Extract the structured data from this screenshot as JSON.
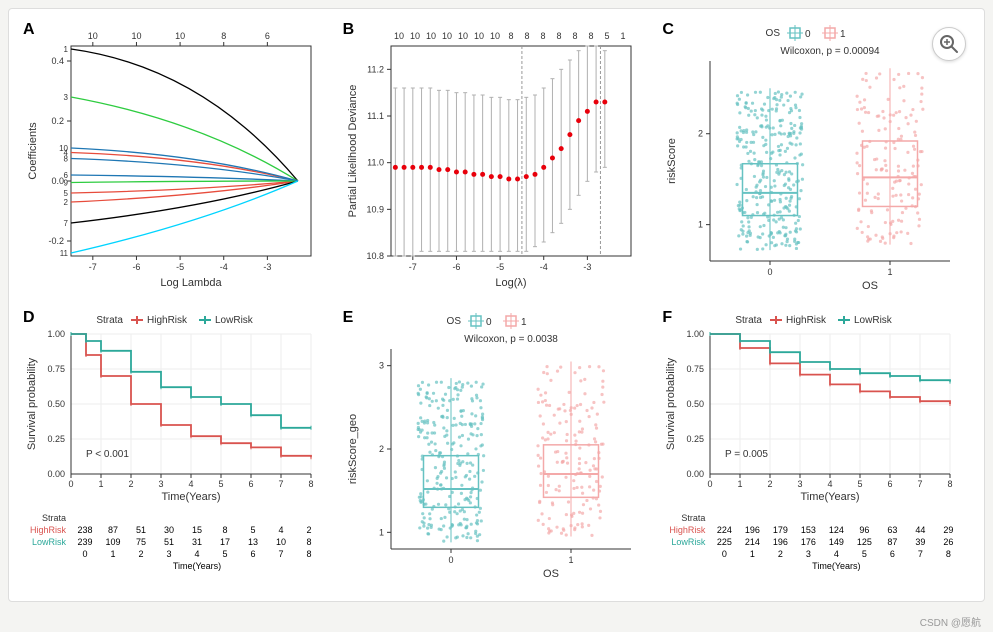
{
  "credit": "CSDN @愿航",
  "zoom_icon": "magnify-plus-icon",
  "palettes": {
    "teal": "#66c2c2",
    "pink": "#f4a9a9",
    "highrisk": "#d9534f",
    "lowrisk": "#2ca89a",
    "grid": "#e0e0e0",
    "border": "#333333",
    "bg": "#ffffff"
  },
  "panelA": {
    "label": "A",
    "type": "line",
    "xlabel": "Log Lambda",
    "ylabel": "Coefficients",
    "xlim": [
      -7.5,
      -2
    ],
    "ylim": [
      -0.25,
      0.45
    ],
    "xticks": [
      -7,
      -6,
      -5,
      -4,
      -3
    ],
    "yticks": [
      -0.2,
      0,
      0.2,
      0.4
    ],
    "top_axis_ticks": [
      10,
      10,
      10,
      8,
      6
    ],
    "line_colors": {
      "1": "#000000",
      "3": "#2ecc40",
      "4": "#e74c3c",
      "5": "#e74c3c",
      "2": "#e74c3c",
      "6": "#1f77b4",
      "7": "#000000",
      "8": "#1f77b4",
      "9": "#2ecc40",
      "10": "#1f77b4",
      "11": "#00d4ff"
    },
    "lines": {
      "1": {
        "y0": 0.44,
        "ymid": 0.38,
        "yend": 0.0,
        "label": "1"
      },
      "3": {
        "y0": 0.28,
        "ymid": 0.2,
        "yend": 0.0,
        "label": "3"
      },
      "10": {
        "y0": 0.11,
        "ymid": 0.09,
        "yend": 0.0,
        "label": "10"
      },
      "4": {
        "y0": 0.095,
        "ymid": 0.08,
        "yend": 0.0,
        "label": "4"
      },
      "8": {
        "y0": 0.075,
        "ymid": 0.06,
        "yend": 0.0,
        "label": "8"
      },
      "6": {
        "y0": 0.02,
        "ymid": 0.015,
        "yend": 0.0,
        "label": "6"
      },
      "9": {
        "y0": -0.005,
        "ymid": 0.0,
        "yend": 0.0,
        "label": "9"
      },
      "5": {
        "y0": -0.04,
        "ymid": -0.03,
        "yend": 0.0,
        "label": "5"
      },
      "2": {
        "y0": -0.07,
        "ymid": -0.05,
        "yend": 0.0,
        "label": "2"
      },
      "7": {
        "y0": -0.14,
        "ymid": -0.09,
        "yend": 0.0,
        "label": "7"
      },
      "11": {
        "y0": -0.24,
        "ymid": -0.14,
        "yend": 0.0,
        "label": "11"
      }
    }
  },
  "panelB": {
    "label": "B",
    "type": "cv-deviance",
    "xlabel": "Log(λ)",
    "ylabel": "Partial Likelihood Deviance",
    "xlim": [
      -7.5,
      -2
    ],
    "ylim": [
      10.8,
      11.25
    ],
    "xticks": [
      -7,
      -6,
      -5,
      -4,
      -3
    ],
    "yticks": [
      10.8,
      10.9,
      11.0,
      11.1,
      11.2
    ],
    "top_labels": [
      "10",
      "10",
      "10",
      "10",
      "10",
      "10",
      "10",
      "8",
      "8",
      "8",
      "8",
      "8",
      "8",
      "5",
      "1"
    ],
    "vlines": [
      -4.5,
      -2.7
    ],
    "point_color": "#e8000b",
    "errorbar_color": "#b0b0b0",
    "points": [
      {
        "x": -7.4,
        "y": 10.99,
        "lo": 10.8,
        "hi": 11.16
      },
      {
        "x": -7.2,
        "y": 10.99,
        "lo": 10.8,
        "hi": 11.16
      },
      {
        "x": -7.0,
        "y": 10.99,
        "lo": 10.8,
        "hi": 11.16
      },
      {
        "x": -6.8,
        "y": 10.99,
        "lo": 10.81,
        "hi": 11.16
      },
      {
        "x": -6.6,
        "y": 10.99,
        "lo": 10.81,
        "hi": 11.16
      },
      {
        "x": -6.4,
        "y": 10.985,
        "lo": 10.81,
        "hi": 11.155
      },
      {
        "x": -6.2,
        "y": 10.985,
        "lo": 10.81,
        "hi": 11.155
      },
      {
        "x": -6.0,
        "y": 10.98,
        "lo": 10.81,
        "hi": 11.15
      },
      {
        "x": -5.8,
        "y": 10.98,
        "lo": 10.81,
        "hi": 11.15
      },
      {
        "x": -5.6,
        "y": 10.975,
        "lo": 10.81,
        "hi": 11.145
      },
      {
        "x": -5.4,
        "y": 10.975,
        "lo": 10.81,
        "hi": 11.145
      },
      {
        "x": -5.2,
        "y": 10.97,
        "lo": 10.81,
        "hi": 11.14
      },
      {
        "x": -5.0,
        "y": 10.97,
        "lo": 10.81,
        "hi": 11.14
      },
      {
        "x": -4.8,
        "y": 10.965,
        "lo": 10.81,
        "hi": 11.135
      },
      {
        "x": -4.6,
        "y": 10.965,
        "lo": 10.81,
        "hi": 11.135
      },
      {
        "x": -4.4,
        "y": 10.97,
        "lo": 10.81,
        "hi": 11.14
      },
      {
        "x": -4.2,
        "y": 10.975,
        "lo": 10.82,
        "hi": 11.145
      },
      {
        "x": -4.0,
        "y": 10.99,
        "lo": 10.83,
        "hi": 11.16
      },
      {
        "x": -3.8,
        "y": 11.01,
        "lo": 10.85,
        "hi": 11.18
      },
      {
        "x": -3.6,
        "y": 11.03,
        "lo": 10.87,
        "hi": 11.2
      },
      {
        "x": -3.4,
        "y": 11.06,
        "lo": 10.9,
        "hi": 11.22
      },
      {
        "x": -3.2,
        "y": 11.09,
        "lo": 10.93,
        "hi": 11.24
      },
      {
        "x": -3.0,
        "y": 11.11,
        "lo": 10.96,
        "hi": 11.25
      },
      {
        "x": -2.8,
        "y": 11.13,
        "lo": 10.98,
        "hi": 11.25
      },
      {
        "x": -2.6,
        "y": 11.13,
        "lo": 10.99,
        "hi": 11.24
      }
    ]
  },
  "panelC": {
    "label": "C",
    "type": "box-jitter",
    "legend_title": "OS",
    "legend_items": [
      "0",
      "1"
    ],
    "legend_colors": [
      "#66c2c2",
      "#f4a9a9"
    ],
    "pval_text": "Wilcoxon, p = 0.00094",
    "xlabel": "OS",
    "ylabel": "riskScore",
    "xlim": [
      -0.5,
      1.5
    ],
    "ylim": [
      0.6,
      2.8
    ],
    "yticks": [
      1,
      2
    ],
    "boxes": [
      {
        "x": 0,
        "q1": 1.1,
        "med": 1.35,
        "q3": 1.67,
        "lo": 0.72,
        "hi": 2.5,
        "color": "#66c2c2",
        "n": 300
      },
      {
        "x": 1,
        "q1": 1.2,
        "med": 1.52,
        "q3": 1.92,
        "lo": 0.78,
        "hi": 2.72,
        "color": "#f4a9a9",
        "n": 150
      }
    ]
  },
  "panelD": {
    "label": "D",
    "type": "km",
    "legend_title": "Strata",
    "legend_items": [
      "HighRisk",
      "LowRisk"
    ],
    "colors": {
      "HighRisk": "#d9534f",
      "LowRisk": "#2ca89a"
    },
    "xlabel": "Time(Years)",
    "ylabel": "Survival probability",
    "pval_text": "P < 0.001",
    "xlim": [
      0,
      8
    ],
    "ylim": [
      0,
      1.0
    ],
    "xticks": [
      0,
      1,
      2,
      3,
      4,
      5,
      6,
      7,
      8
    ],
    "yticks": [
      0,
      0.25,
      0.5,
      0.75,
      1.0
    ],
    "curves": {
      "HighRisk": [
        [
          0,
          1.0
        ],
        [
          0.5,
          0.85
        ],
        [
          1,
          0.7
        ],
        [
          2,
          0.5
        ],
        [
          3,
          0.35
        ],
        [
          4,
          0.27
        ],
        [
          5,
          0.22
        ],
        [
          6,
          0.19
        ],
        [
          7,
          0.13
        ],
        [
          8,
          0.12
        ]
      ],
      "LowRisk": [
        [
          0,
          1.0
        ],
        [
          0.5,
          0.95
        ],
        [
          1,
          0.88
        ],
        [
          2,
          0.73
        ],
        [
          3,
          0.62
        ],
        [
          4,
          0.55
        ],
        [
          5,
          0.5
        ],
        [
          6,
          0.42
        ],
        [
          7,
          0.33
        ],
        [
          8,
          0.33
        ]
      ]
    },
    "risk_table": {
      "title": "Strata",
      "rows": [
        {
          "label": "HighRisk",
          "color": "#d9534f",
          "vals": [
            238,
            87,
            51,
            30,
            15,
            8,
            5,
            4,
            2
          ]
        },
        {
          "label": "LowRisk",
          "color": "#2ca89a",
          "vals": [
            239,
            109,
            75,
            51,
            31,
            17,
            13,
            10,
            8
          ]
        }
      ],
      "xlab": "Time(Years)"
    }
  },
  "panelE": {
    "label": "E",
    "type": "box-jitter",
    "legend_title": "OS",
    "legend_items": [
      "0",
      "1"
    ],
    "legend_colors": [
      "#66c2c2",
      "#f4a9a9"
    ],
    "pval_text": "Wilcoxon, p = 0.0038",
    "xlabel": "OS",
    "ylabel": "riskScore_geo",
    "xlim": [
      -0.5,
      1.5
    ],
    "ylim": [
      0.8,
      3.2
    ],
    "yticks": [
      1,
      2,
      3
    ],
    "boxes": [
      {
        "x": 0,
        "q1": 1.3,
        "med": 1.52,
        "q3": 1.92,
        "lo": 0.88,
        "hi": 2.85,
        "color": "#66c2c2",
        "n": 260
      },
      {
        "x": 1,
        "q1": 1.42,
        "med": 1.7,
        "q3": 2.05,
        "lo": 0.95,
        "hi": 3.05,
        "color": "#f4a9a9",
        "n": 160
      }
    ]
  },
  "panelF": {
    "label": "F",
    "type": "km",
    "legend_title": "Strata",
    "legend_items": [
      "HighRisk",
      "LowRisk"
    ],
    "colors": {
      "HighRisk": "#d9534f",
      "LowRisk": "#2ca89a"
    },
    "xlabel": "Time(Years)",
    "ylabel": "Survival probability",
    "pval_text": "P = 0.005",
    "xlim": [
      0,
      8
    ],
    "ylim": [
      0,
      1.0
    ],
    "xticks": [
      0,
      1,
      2,
      3,
      4,
      5,
      6,
      7,
      8
    ],
    "yticks": [
      0,
      0.25,
      0.5,
      0.75,
      1.0
    ],
    "curves": {
      "HighRisk": [
        [
          0,
          1.0
        ],
        [
          1,
          0.9
        ],
        [
          2,
          0.79
        ],
        [
          3,
          0.71
        ],
        [
          4,
          0.64
        ],
        [
          5,
          0.59
        ],
        [
          6,
          0.55
        ],
        [
          7,
          0.52
        ],
        [
          8,
          0.5
        ]
      ],
      "LowRisk": [
        [
          0,
          1.0
        ],
        [
          1,
          0.95
        ],
        [
          2,
          0.87
        ],
        [
          3,
          0.8
        ],
        [
          4,
          0.75
        ],
        [
          5,
          0.72
        ],
        [
          6,
          0.7
        ],
        [
          7,
          0.67
        ],
        [
          8,
          0.66
        ]
      ]
    },
    "risk_table": {
      "title": "Strata",
      "rows": [
        {
          "label": "HighRisk",
          "color": "#d9534f",
          "vals": [
            224,
            196,
            179,
            153,
            124,
            96,
            63,
            44,
            29
          ]
        },
        {
          "label": "LowRisk",
          "color": "#2ca89a",
          "vals": [
            225,
            214,
            196,
            176,
            149,
            125,
            87,
            39,
            26
          ]
        }
      ],
      "xlab": "Time(Years)"
    }
  }
}
